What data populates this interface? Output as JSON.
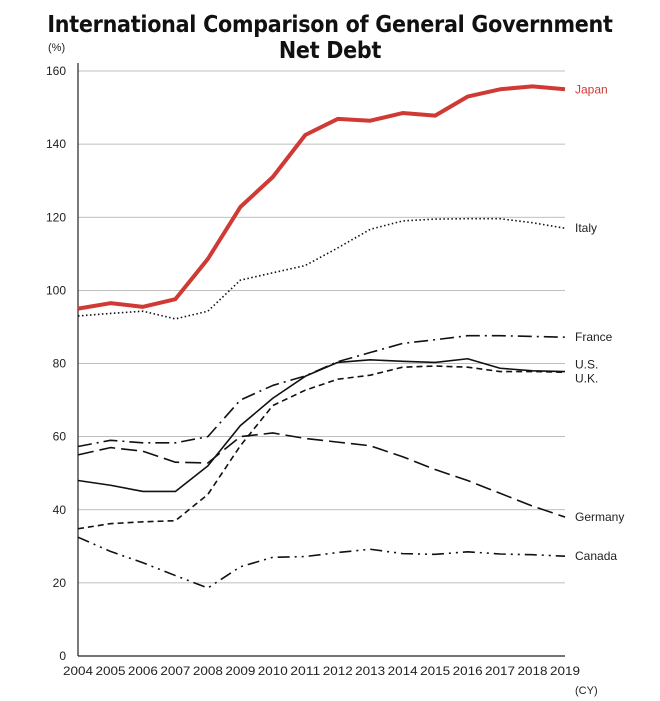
{
  "chart_data": {
    "type": "line",
    "title": "International Comparison of General Government Net Debt",
    "ylabel": "(%)",
    "xlabel": "(CY)",
    "ylim": [
      0,
      160
    ],
    "yticks": [
      0,
      20,
      40,
      60,
      80,
      100,
      120,
      140,
      160
    ],
    "grid": true,
    "legend": "line-end labels",
    "x": [
      2004,
      2005,
      2006,
      2007,
      2008,
      2009,
      2010,
      2011,
      2012,
      2013,
      2014,
      2015,
      2016,
      2017,
      2018,
      2019
    ],
    "series": [
      {
        "name": "Japan",
        "color": "#d03a35",
        "style": "solid-thick",
        "values": [
          95,
          96.5,
          95.5,
          97.6,
          108.6,
          122.8,
          131,
          142.5,
          146.9,
          146.4,
          148.5,
          147.8,
          153,
          155,
          155.8,
          155
        ]
      },
      {
        "name": "Italy",
        "color": "#111111",
        "style": "dotted",
        "values": [
          93,
          93.7,
          94.3,
          92.2,
          94.3,
          102.8,
          104.8,
          106.8,
          111.6,
          116.7,
          119,
          119.5,
          119.6,
          119.6,
          118.5,
          117
        ]
      },
      {
        "name": "France",
        "color": "#111111",
        "style": "long-dash-dot",
        "values": [
          57.3,
          59,
          58.3,
          58.3,
          60,
          70,
          74,
          76.6,
          80.5,
          83,
          85.5,
          86.5,
          87.6,
          87.6,
          87.4,
          87.2
        ]
      },
      {
        "name": "U.S.",
        "color": "#111111",
        "style": "solid",
        "values": [
          48,
          46.7,
          45,
          45,
          52,
          63,
          70.5,
          76.5,
          80.3,
          81,
          80.6,
          80.3,
          81.3,
          78.7,
          78,
          77.8
        ]
      },
      {
        "name": "U.K.",
        "color": "#111111",
        "style": "short-dash",
        "values": [
          34.8,
          36.2,
          36.7,
          37,
          44.2,
          57.5,
          68.5,
          72.7,
          75.7,
          76.8,
          79,
          79.3,
          79,
          77.8,
          77.8,
          77.6
        ]
      },
      {
        "name": "Germany",
        "color": "#111111",
        "style": "long-dash",
        "values": [
          55,
          57,
          56,
          53,
          52.8,
          60,
          61,
          59.5,
          58.5,
          57.5,
          54.5,
          51,
          48,
          44.5,
          41,
          38
        ]
      },
      {
        "name": "Canada",
        "color": "#111111",
        "style": "dash-dot-dot",
        "values": [
          32.5,
          28.6,
          25.5,
          22,
          18.6,
          24.4,
          27,
          27.2,
          28.3,
          29.2,
          28,
          27.8,
          28.5,
          27.9,
          27.7,
          27.3
        ]
      }
    ]
  }
}
